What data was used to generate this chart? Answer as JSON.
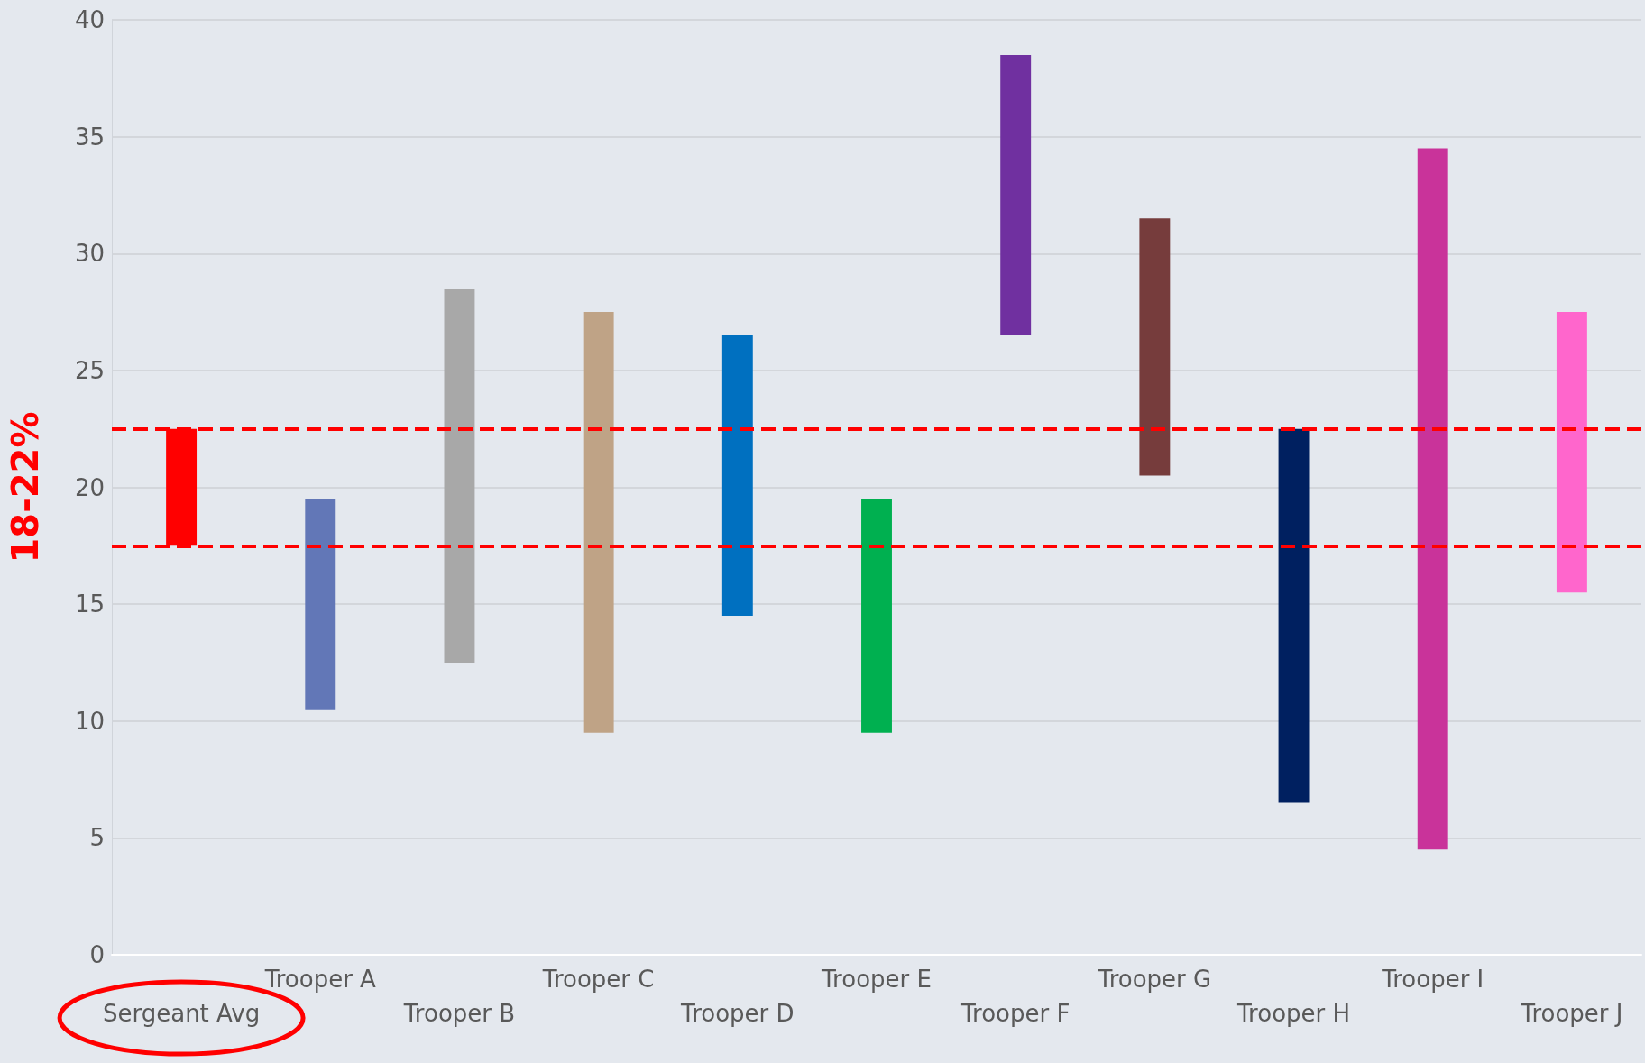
{
  "chart_data": {
    "type": "bar",
    "ylabel": "18-22%",
    "categories": [
      "Sergeant Avg",
      "Trooper A",
      "Trooper B",
      "Trooper C",
      "Trooper D",
      "Trooper E",
      "Trooper F",
      "Trooper G",
      "Trooper H",
      "Trooper I",
      "Trooper J"
    ],
    "base": [
      17.5,
      10.5,
      12.5,
      9.5,
      14.5,
      9.5,
      26.5,
      20.5,
      6.5,
      4.5,
      15.5
    ],
    "values": [
      5,
      9,
      16,
      18,
      12,
      10,
      12,
      11,
      16,
      30,
      12
    ],
    "colors": [
      "#ff0000",
      "#6277b7",
      "#a8a8a8",
      "#bfa386",
      "#0070c0",
      "#00b050",
      "#7030a0",
      "#763c3c",
      "#002060",
      "#c9339a",
      "#ff66cc"
    ],
    "ylim": [
      0,
      40
    ],
    "yticks": [
      0,
      5,
      10,
      15,
      20,
      25,
      30,
      35,
      40
    ],
    "grid": "y",
    "ref_lines": [
      {
        "axis": "y",
        "value": 22.5,
        "color": "#ff0000",
        "line_style": "dashed"
      },
      {
        "axis": "y",
        "value": 17.5,
        "color": "#ff0000",
        "line_style": "dashed"
      }
    ]
  }
}
